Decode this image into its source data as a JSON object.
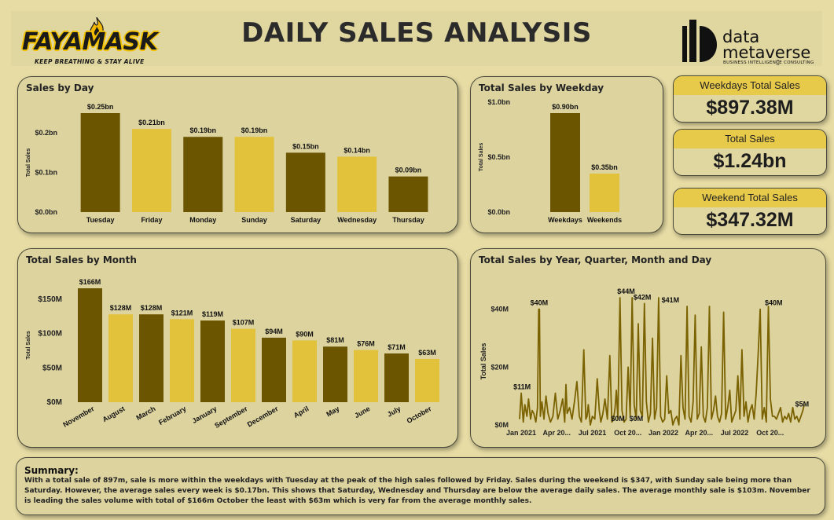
{
  "header": {
    "title": "DAILY SALES ANALYSIS",
    "logo_name": "FAYAMASK",
    "logo_tagline": "KEEP BREATHING & STAY ALIVE",
    "brand_line1": "data",
    "brand_line2": "metaverse",
    "brand_sub": "BUSINESS INTELLIGENCE CONSULTING",
    "collapse_glyph": "▯"
  },
  "kpis": [
    {
      "label": "Weekdays Total Sales",
      "value": "$897.38M"
    },
    {
      "label": "Total Sales",
      "value": "$1.24bn"
    },
    {
      "label": "Weekend Total Sales",
      "value": "$347.32M"
    }
  ],
  "colors": {
    "dark": "#6b5500",
    "gold": "#e2c23a",
    "line": "#7a6200"
  },
  "summary": {
    "title": "Summary:",
    "text": "With a total sale of 897m, sale is more within the weekdays with Tuesday at the peak of the high sales followed by Friday. Sales during the weekend is $347, with Sunday sale being more than Saturday. However, the average sales every week is $0.17bn. This shows that Saturday, Wednesday and Thursday are below the average daily sales. The average monthly sale is $103m. November is leading the sales volume with total of $166m October the least with $63m which is very far from the average monthly sales."
  },
  "chart_data": [
    {
      "id": "day",
      "type": "bar",
      "title": "Sales by Day",
      "ylabel": "Total Sales",
      "ylim": [
        0,
        0.25
      ],
      "yticks": [
        {
          "v": 0,
          "label": "$0.0bn"
        },
        {
          "v": 0.1,
          "label": "$0.1bn"
        },
        {
          "v": 0.2,
          "label": "$0.2bn"
        }
      ],
      "categories": [
        "Tuesday",
        "Friday",
        "Monday",
        "Sunday",
        "Saturday",
        "Wednesday",
        "Thursday"
      ],
      "values": [
        0.25,
        0.21,
        0.19,
        0.19,
        0.15,
        0.14,
        0.09
      ],
      "labels": [
        "$0.25bn",
        "$0.21bn",
        "$0.19bn",
        "$0.19bn",
        "$0.15bn",
        "$0.14bn",
        "$0.09bn"
      ],
      "colors": [
        "dark",
        "gold",
        "dark",
        "gold",
        "dark",
        "gold",
        "dark"
      ]
    },
    {
      "id": "weekday",
      "type": "bar",
      "title": "Total Sales by Weekday",
      "ylabel": "Total Sales",
      "ylim": [
        0,
        1.0
      ],
      "yticks": [
        {
          "v": 0,
          "label": "$0.0bn"
        },
        {
          "v": 0.5,
          "label": "$0.5bn"
        },
        {
          "v": 1.0,
          "label": "$1.0bn"
        }
      ],
      "categories": [
        "Weekdays",
        "Weekends"
      ],
      "values": [
        0.9,
        0.35
      ],
      "labels": [
        "$0.90bn",
        "$0.35bn"
      ],
      "colors": [
        "dark",
        "gold"
      ]
    },
    {
      "id": "month",
      "type": "bar",
      "title": "Total Sales by Month",
      "ylabel": "Total Sales",
      "ylim": [
        0,
        166
      ],
      "yticks": [
        {
          "v": 0,
          "label": "$0M"
        },
        {
          "v": 50,
          "label": "$50M"
        },
        {
          "v": 100,
          "label": "$100M"
        },
        {
          "v": 150,
          "label": "$150M"
        }
      ],
      "categories": [
        "November",
        "August",
        "March",
        "February",
        "January",
        "September",
        "December",
        "April",
        "May",
        "June",
        "July",
        "October"
      ],
      "values": [
        166,
        128,
        128,
        121,
        119,
        107,
        94,
        90,
        81,
        76,
        71,
        63
      ],
      "labels": [
        "$166M",
        "$128M",
        "$128M",
        "$121M",
        "$119M",
        "$107M",
        "$94M",
        "$90M",
        "$81M",
        "$76M",
        "$71M",
        "$63M"
      ],
      "colors": [
        "dark",
        "gold",
        "dark",
        "gold",
        "dark",
        "gold",
        "dark",
        "gold",
        "dark",
        "gold",
        "dark",
        "gold"
      ]
    },
    {
      "id": "timeline",
      "type": "line",
      "title": "Total Sales by Year, Quarter, Month and Day",
      "ylabel": "Total Sales",
      "ylim": [
        0,
        44
      ],
      "yticks": [
        {
          "v": 0,
          "label": "$0M"
        },
        {
          "v": 20,
          "label": "$20M"
        },
        {
          "v": 40,
          "label": "$40M"
        }
      ],
      "xticks": [
        "Jan 2021",
        "Apr 20...",
        "Jul 2021",
        "Oct 20...",
        "Jan 2022",
        "Apr 20...",
        "Jul 2022",
        "Oct 20..."
      ],
      "x_days": 700,
      "x": [
        0,
        4,
        9,
        13,
        18,
        22,
        27,
        31,
        35,
        40,
        44,
        47,
        49,
        51,
        55,
        60,
        65,
        70,
        76,
        82,
        88,
        94,
        100,
        106,
        111,
        114,
        117,
        123,
        129,
        135,
        141,
        147,
        152,
        158,
        163,
        166,
        169,
        174,
        179,
        185,
        191,
        196,
        200,
        205,
        210,
        216,
        222,
        227,
        232,
        235,
        238,
        242,
        247,
        252,
        257,
        262,
        267,
        272,
        277,
        282,
        287,
        292,
        297,
        302,
        307,
        312,
        317,
        322,
        327,
        332,
        337,
        342,
        347,
        352,
        357,
        362,
        367,
        372,
        377,
        382,
        387,
        392,
        397,
        402,
        407,
        412,
        417,
        422,
        427,
        432,
        437,
        442,
        447,
        452,
        457,
        462,
        467,
        472,
        477,
        482,
        487,
        492,
        497,
        502,
        507,
        512,
        517,
        522,
        527,
        532,
        537,
        542,
        547,
        552,
        557,
        562,
        567,
        572,
        577,
        582,
        587,
        592,
        597,
        602,
        607,
        612,
        617,
        622,
        627,
        632,
        637,
        642,
        647,
        652,
        657,
        662,
        667,
        672,
        677,
        682,
        687,
        692,
        697,
        700
      ],
      "values": [
        2,
        11,
        1,
        7,
        3,
        9,
        2,
        5,
        4,
        1,
        6,
        40,
        40,
        3,
        8,
        2,
        10,
        4,
        1,
        3,
        11,
        2,
        5,
        9,
        1,
        14,
        4,
        6,
        2,
        8,
        15,
        3,
        1,
        26,
        2,
        3,
        7,
        0,
        3,
        2,
        16,
        5,
        1,
        4,
        9,
        2,
        24,
        1,
        3,
        6,
        12,
        2,
        44,
        5,
        1,
        2,
        20,
        3,
        44,
        7,
        2,
        35,
        5,
        3,
        42,
        8,
        1,
        4,
        30,
        2,
        6,
        44,
        3,
        1,
        2,
        17,
        4,
        5,
        0,
        2,
        3,
        0,
        24,
        6,
        2,
        41,
        3,
        1,
        8,
        38,
        2,
        4,
        27,
        3,
        1,
        6,
        41,
        2,
        5,
        10,
        3,
        1,
        4,
        39,
        2,
        6,
        12,
        1,
        3,
        5,
        17,
        2,
        26,
        3,
        8,
        1,
        5,
        7,
        2,
        11,
        25,
        40,
        2,
        6,
        1,
        41,
        9,
        3,
        3,
        2,
        4,
        6,
        1,
        3,
        2,
        4,
        1,
        6,
        2,
        3,
        1,
        3,
        5,
        7
      ],
      "labels": [
        {
          "x": 6,
          "y": 11,
          "text": "$11M"
        },
        {
          "x": 48,
          "y": 40,
          "text": "$40M"
        },
        {
          "x": 262,
          "y": 44,
          "text": "$44M"
        },
        {
          "x": 302,
          "y": 42,
          "text": "$42M"
        },
        {
          "x": 371,
          "y": 41,
          "text": "$41M"
        },
        {
          "x": 242,
          "y": 0,
          "text": "$0M"
        },
        {
          "x": 287,
          "y": 0,
          "text": "$0M"
        },
        {
          "x": 625,
          "y": 40,
          "text": "$40M"
        },
        {
          "x": 695,
          "y": 5,
          "text": "$5M"
        }
      ]
    }
  ]
}
